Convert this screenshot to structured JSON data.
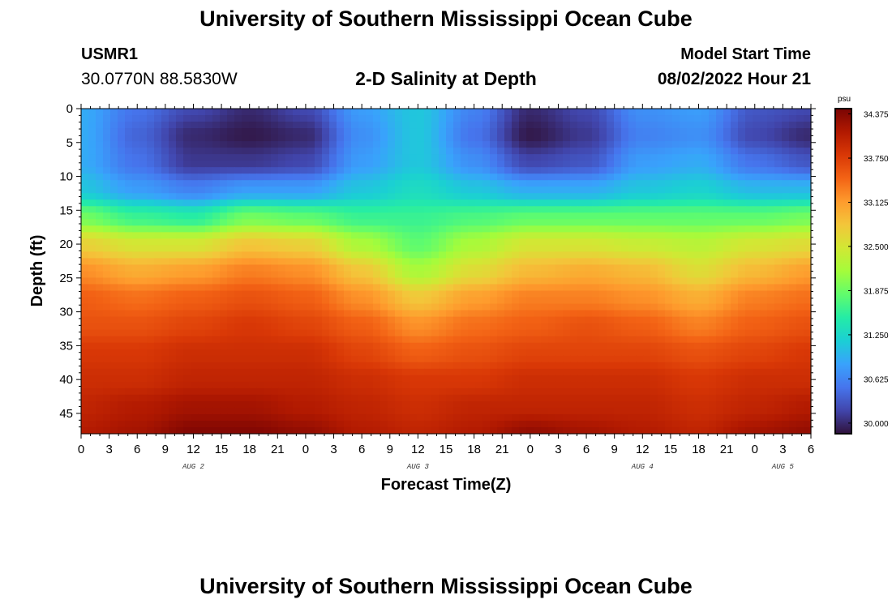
{
  "page": {
    "title": "University of Southern Mississippi Ocean Cube",
    "footer_title": "University of Southern Mississippi Ocean Cube",
    "station": "USMR1",
    "coords": "30.0770N  88.5830W",
    "subtitle": "2-D Salinity at Depth",
    "model_start_label": "Model Start Time",
    "model_start_value": "08/02/2022 Hour 21"
  },
  "chart_data": {
    "type": "heatmap",
    "title": "2-D Salinity at Depth",
    "xlabel": "Forecast Time(Z)",
    "ylabel": "Depth (ft)",
    "x_start_hour": 0,
    "x_end_hour": 78,
    "x_tick_labels": [
      "0",
      "3",
      "6",
      "9",
      "12",
      "15",
      "18",
      "21",
      "0",
      "3",
      "6",
      "9",
      "12",
      "15",
      "18",
      "21",
      "0",
      "3",
      "6",
      "9",
      "12",
      "15",
      "18",
      "21",
      "0",
      "3",
      "6"
    ],
    "date_labels": [
      {
        "text": "AUG 2",
        "hour": 12
      },
      {
        "text": "AUG 3",
        "hour": 36
      },
      {
        "text": "AUG 4",
        "hour": 60
      },
      {
        "text": "AUG 5",
        "hour": 75
      }
    ],
    "ylim": [
      0,
      48
    ],
    "y_ticks": [
      "0",
      "5",
      "10",
      "15",
      "20",
      "25",
      "30",
      "35",
      "40",
      "45"
    ],
    "colorbar": {
      "unit": "psu",
      "min": 29.85,
      "max": 34.45,
      "ticks": [
        "30.000",
        "30.625",
        "31.250",
        "31.875",
        "32.500",
        "33.125",
        "33.750",
        "34.375"
      ],
      "colors": [
        "#30123b",
        "#4145ab",
        "#4675ed",
        "#39a2fc",
        "#1bcfd4",
        "#24eca6",
        "#61fc6c",
        "#a4fc3b",
        "#d1e834",
        "#f3c63a",
        "#fe9b2d",
        "#f36315",
        "#d93806",
        "#b11901",
        "#7a0403"
      ]
    },
    "salinity": {
      "description": "Approximate salinity (psu) field, sampled every 6 h (columns) and every 4 ft (rows 0..48)",
      "hours": [
        0,
        6,
        12,
        18,
        24,
        30,
        36,
        42,
        48,
        54,
        60,
        66,
        72,
        78
      ],
      "depths": [
        0,
        4,
        8,
        12,
        16,
        20,
        24,
        28,
        32,
        36,
        40,
        44,
        48
      ],
      "values": [
        [
          30.9,
          30.5,
          30.2,
          30.0,
          30.2,
          30.8,
          31.1,
          30.6,
          30.0,
          30.2,
          30.7,
          30.8,
          30.3,
          30.2
        ],
        [
          30.9,
          30.4,
          30.0,
          29.9,
          30.0,
          30.7,
          31.1,
          30.5,
          29.9,
          30.1,
          30.6,
          30.7,
          30.2,
          30.0
        ],
        [
          30.9,
          30.5,
          30.1,
          30.1,
          30.2,
          30.8,
          31.1,
          30.7,
          30.2,
          30.3,
          30.8,
          30.9,
          30.5,
          30.3
        ],
        [
          31.1,
          30.8,
          30.6,
          30.8,
          30.8,
          31.1,
          31.3,
          31.1,
          30.9,
          30.9,
          31.1,
          31.2,
          31.0,
          31.0
        ],
        [
          31.9,
          31.6,
          31.5,
          31.9,
          31.8,
          31.6,
          31.6,
          31.7,
          31.8,
          31.8,
          31.8,
          31.8,
          31.8,
          31.9
        ],
        [
          32.7,
          32.5,
          32.5,
          32.8,
          32.7,
          32.2,
          31.8,
          32.2,
          32.5,
          32.5,
          32.4,
          32.3,
          32.5,
          32.6
        ],
        [
          33.2,
          33.0,
          33.1,
          33.3,
          33.2,
          32.8,
          32.2,
          32.6,
          32.9,
          33.0,
          32.9,
          32.6,
          32.9,
          33.1
        ],
        [
          33.5,
          33.4,
          33.5,
          33.6,
          33.5,
          33.2,
          32.8,
          33.1,
          33.3,
          33.3,
          33.2,
          33.0,
          33.3,
          33.4
        ],
        [
          33.6,
          33.6,
          33.7,
          33.8,
          33.7,
          33.5,
          33.2,
          33.4,
          33.5,
          33.6,
          33.5,
          33.3,
          33.5,
          33.6
        ],
        [
          33.8,
          33.8,
          33.9,
          33.9,
          33.9,
          33.7,
          33.5,
          33.6,
          33.7,
          33.7,
          33.7,
          33.6,
          33.7,
          33.8
        ],
        [
          33.9,
          33.9,
          34.0,
          34.0,
          34.0,
          33.9,
          33.8,
          33.8,
          33.9,
          33.9,
          33.9,
          33.8,
          33.9,
          33.9
        ],
        [
          34.0,
          34.1,
          34.2,
          34.2,
          34.1,
          34.0,
          33.9,
          34.0,
          34.0,
          34.0,
          34.0,
          33.9,
          34.0,
          34.1
        ],
        [
          34.1,
          34.2,
          34.4,
          34.4,
          34.3,
          34.1,
          34.0,
          34.1,
          34.3,
          34.2,
          34.1,
          34.0,
          34.2,
          34.3
        ]
      ]
    }
  }
}
